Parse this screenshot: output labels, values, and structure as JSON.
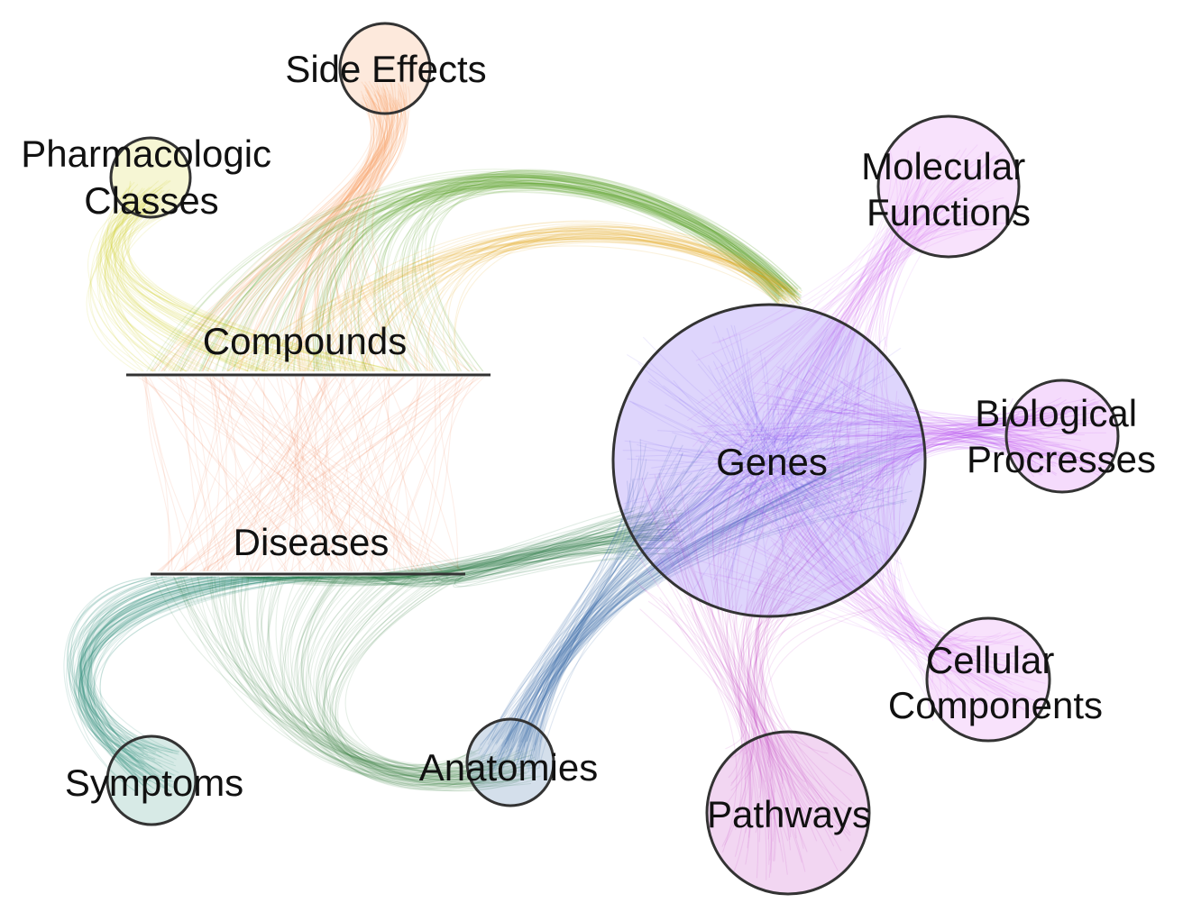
{
  "nodes": {
    "side_effects": {
      "label": "Side Effects",
      "color": "#f79a5e"
    },
    "pharmacologic_classes": {
      "label_line1": "Pharmacologic",
      "label_line2": "Classes",
      "color": "#d8d83a"
    },
    "compounds": {
      "label": "Compounds",
      "color": "#e6c22a"
    },
    "diseases": {
      "label": "Diseases",
      "color": "#2f8c7a"
    },
    "symptoms": {
      "label": "Symptoms",
      "color": "#4aa08f"
    },
    "anatomies": {
      "label": "Anatomies",
      "color": "#3d6fa6"
    },
    "genes": {
      "label": "Genes",
      "color": "#6a40f0"
    },
    "molecular_functions": {
      "label_line1": "Molecular",
      "label_line2": "Functions",
      "color": "#e07cf0"
    },
    "biological_processes": {
      "label_line1": "Biological",
      "label_line2": "Procresses",
      "color": "#d35cf0"
    },
    "cellular_components": {
      "label_line1": "Cellular",
      "label_line2": "Components",
      "color": "#e07cf0"
    },
    "pathways": {
      "label": "Pathways",
      "color": "#c443c4"
    }
  },
  "edge_colors": {
    "compound_side_effect": "#f79a5e",
    "compound_pharmacologic": "#d4d43a",
    "compound_gene": "#5aa02a",
    "compound_gene_alt": "#e0a010",
    "compound_disease": "#f07850",
    "disease_symptom": "#2f8c7a",
    "disease_anatomy": "#2e7a3a",
    "disease_gene": "#1f6e3a",
    "anatomy_gene": "#3a6aa8",
    "gene_molecular": "#d060f0",
    "gene_biological": "#b040f0",
    "gene_cellular": "#d060f0",
    "gene_pathway": "#c030c0",
    "gene_gene": "#6040f0"
  }
}
